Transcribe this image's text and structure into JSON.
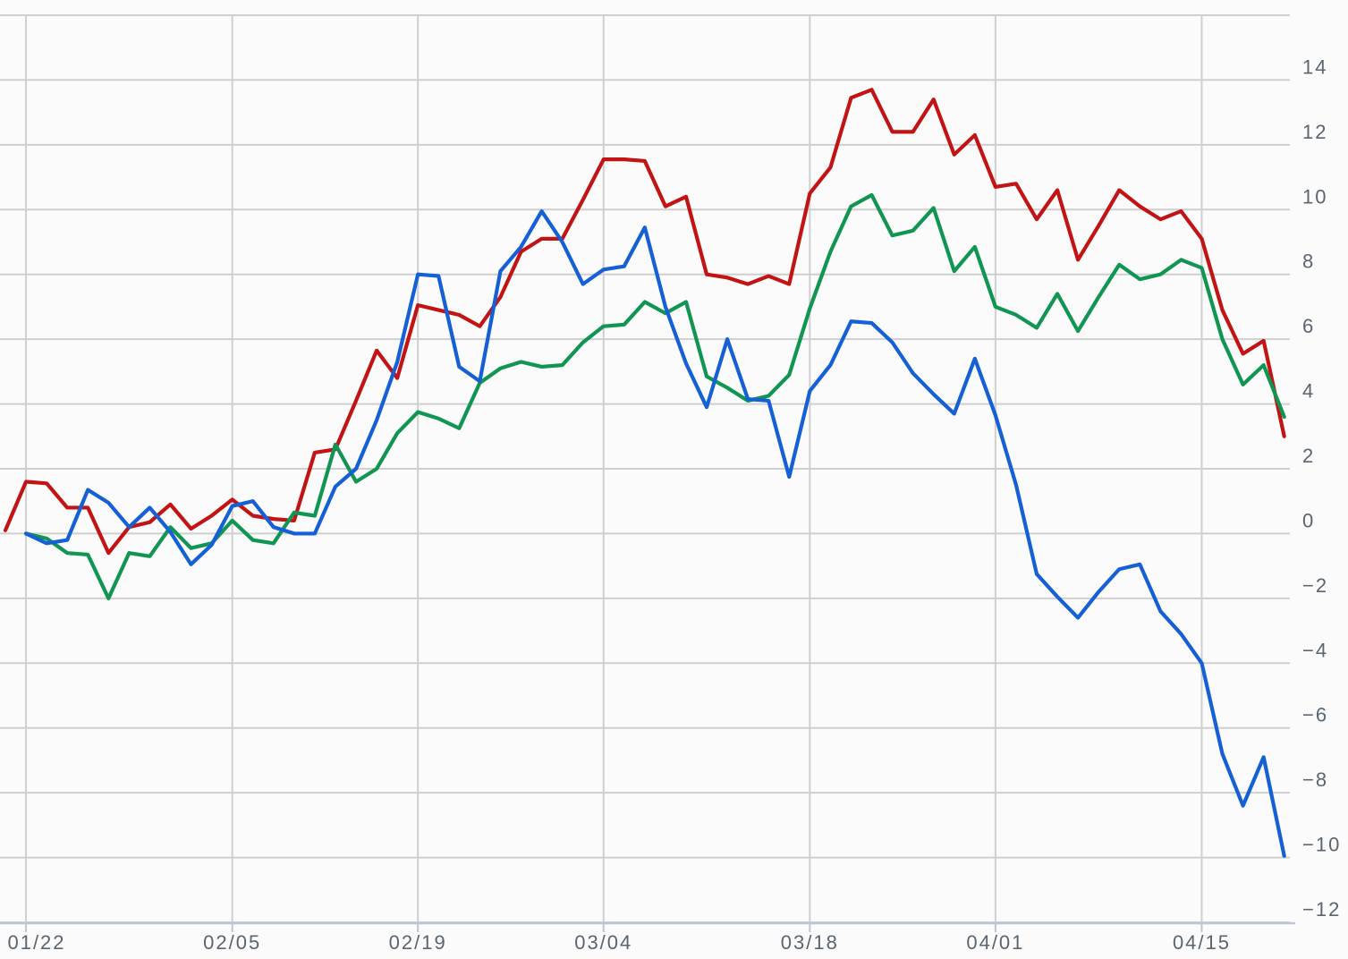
{
  "chart_data": {
    "type": "line",
    "title": "",
    "xlabel": "",
    "ylabel": "",
    "legend": "none",
    "grid": true,
    "y_axis_side": "right",
    "ylim": [
      -12,
      16
    ],
    "y_ticks": [
      {
        "value": 14,
        "label": "14"
      },
      {
        "value": 12,
        "label": "12"
      },
      {
        "value": 10,
        "label": "10"
      },
      {
        "value": 8,
        "label": "8"
      },
      {
        "value": 6,
        "label": "6"
      },
      {
        "value": 4,
        "label": "4"
      },
      {
        "value": 2,
        "label": "2"
      },
      {
        "value": 0,
        "label": "0"
      },
      {
        "value": -2,
        "label": "−2"
      },
      {
        "value": -4,
        "label": "−4"
      },
      {
        "value": -6,
        "label": "−6"
      },
      {
        "value": -8,
        "label": "−8"
      },
      {
        "value": -10,
        "label": "−10"
      },
      {
        "value": -12,
        "label": "−12"
      }
    ],
    "x_point_count": 63,
    "x_ticks": [
      {
        "index": 1,
        "label": "01/22"
      },
      {
        "index": 11,
        "label": "02/05"
      },
      {
        "index": 20,
        "label": "02/19"
      },
      {
        "index": 29,
        "label": "03/04"
      },
      {
        "index": 39,
        "label": "03/18"
      },
      {
        "index": 48,
        "label": "04/01"
      },
      {
        "index": 58,
        "label": "04/15"
      }
    ],
    "series": [
      {
        "name": "red-series",
        "color": "#c21315",
        "values": [
          0.1,
          1.6,
          1.55,
          0.8,
          0.8,
          -0.6,
          0.2,
          0.35,
          0.9,
          0.15,
          0.55,
          1.05,
          0.55,
          0.45,
          0.4,
          2.5,
          2.6,
          4.1,
          5.65,
          4.8,
          7.05,
          6.9,
          6.75,
          6.4,
          7.3,
          8.7,
          9.1,
          9.1,
          10.3,
          11.55,
          11.55,
          11.5,
          10.1,
          10.4,
          8.0,
          7.9,
          7.7,
          7.95,
          7.7,
          10.5,
          11.3,
          13.45,
          13.7,
          12.4,
          12.4,
          13.4,
          11.7,
          12.3,
          10.7,
          10.8,
          9.7,
          10.6,
          8.45,
          9.5,
          10.6,
          10.1,
          9.7,
          9.95,
          9.1,
          6.9,
          5.55,
          5.95,
          3.0
        ]
      },
      {
        "name": "green-series",
        "color": "#109552",
        "values": [
          null,
          0.0,
          -0.15,
          -0.6,
          -0.65,
          -2.0,
          -0.6,
          -0.7,
          0.2,
          -0.45,
          -0.3,
          0.4,
          -0.2,
          -0.3,
          0.65,
          0.55,
          2.75,
          1.6,
          2.0,
          3.1,
          3.75,
          3.55,
          3.25,
          4.65,
          5.1,
          5.3,
          5.15,
          5.2,
          5.9,
          6.4,
          6.45,
          7.15,
          6.8,
          7.15,
          4.85,
          4.5,
          4.1,
          4.25,
          4.9,
          6.95,
          8.7,
          10.1,
          10.45,
          9.2,
          9.35,
          10.05,
          8.1,
          8.85,
          7.0,
          6.75,
          6.35,
          7.4,
          6.25,
          7.3,
          8.3,
          7.85,
          8.0,
          8.45,
          8.2,
          6.0,
          4.6,
          5.2,
          3.6
        ]
      },
      {
        "name": "blue-series",
        "color": "#1660d6",
        "values": [
          null,
          0.0,
          -0.3,
          -0.2,
          1.35,
          0.95,
          0.2,
          0.8,
          0.05,
          -0.95,
          -0.35,
          0.85,
          1.0,
          0.2,
          0.0,
          0.0,
          1.45,
          2.0,
          3.5,
          5.3,
          8.0,
          7.95,
          5.15,
          4.7,
          8.1,
          8.85,
          9.95,
          9.0,
          7.7,
          8.15,
          8.25,
          9.45,
          7.0,
          5.25,
          3.9,
          6.0,
          4.15,
          4.1,
          1.75,
          4.4,
          5.2,
          6.55,
          6.5,
          5.9,
          4.95,
          4.3,
          3.7,
          5.4,
          3.65,
          1.5,
          -1.25,
          -1.95,
          -2.6,
          -1.8,
          -1.1,
          -0.95,
          -2.4,
          -3.1,
          -4.0,
          -6.8,
          -8.4,
          -6.9,
          -9.95
        ]
      }
    ]
  },
  "style": {
    "background_color": "#fbfbfb",
    "gridline_color": "#cfcfcf",
    "axis_line_color": "#b9c7d6",
    "label_color": "#5a6570",
    "line_width": 4.2
  }
}
